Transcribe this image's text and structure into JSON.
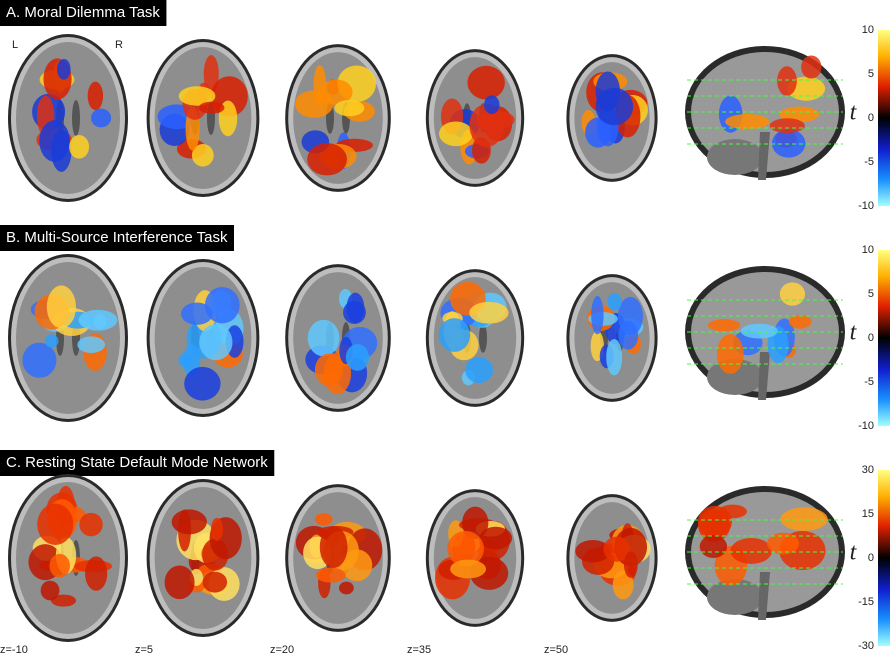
{
  "hemisphere_labels": {
    "left": "L",
    "right": "R"
  },
  "panels": [
    {
      "title": "A. Moral Dilemma Task",
      "colorbar": {
        "ticks": [
          10,
          5,
          0,
          -5,
          -10
        ],
        "label": "t"
      }
    },
    {
      "title": "B. Multi-Source Interference Task",
      "colorbar": {
        "ticks": [
          10,
          5,
          0,
          -5,
          -10
        ],
        "label": "t"
      }
    },
    {
      "title": "C. Resting State Default Mode Network",
      "colorbar": {
        "ticks": [
          30,
          15,
          0,
          -15,
          -30
        ],
        "label": "t"
      }
    }
  ],
  "slice_labels": [
    "z=-10",
    "z=5",
    "z=20",
    "z=35",
    "z=50"
  ]
}
